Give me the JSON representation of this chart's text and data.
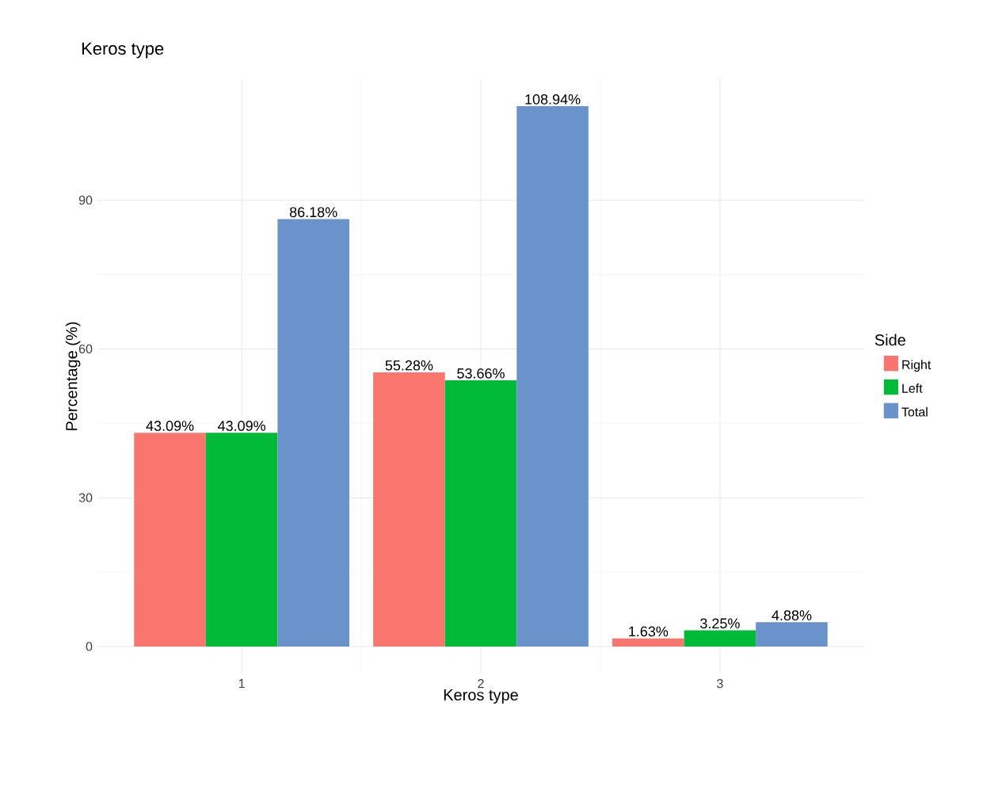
{
  "chart_data": {
    "type": "bar",
    "title": "Keros type",
    "xlabel": "Keros type",
    "ylabel": "Percentage (%)",
    "legend_title": "Side",
    "categories": [
      "1",
      "2",
      "3"
    ],
    "series": [
      {
        "name": "Right",
        "color": "#f8766d",
        "values": [
          43.09,
          55.28,
          1.63
        ],
        "value_labels": [
          "43.09%",
          "55.28%",
          "1.63%"
        ]
      },
      {
        "name": "Left",
        "color": "#00ba38",
        "values": [
          43.09,
          53.66,
          3.25
        ],
        "value_labels": [
          "43.09%",
          "53.66%",
          "3.25%"
        ]
      },
      {
        "name": "Total",
        "color": "#6b93cb",
        "values": [
          86.18,
          108.94,
          4.88
        ],
        "value_labels": [
          "86.18%",
          "108.94%",
          "4.88%"
        ]
      }
    ],
    "ylim": [
      -5.45,
      114.39
    ],
    "yticks": [
      0,
      30,
      60,
      90
    ],
    "grid": true,
    "legend": "right"
  }
}
